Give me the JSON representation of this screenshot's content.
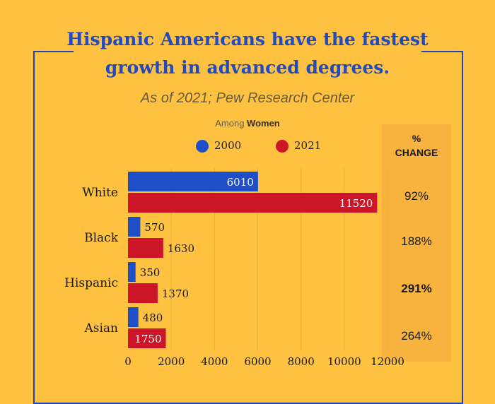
{
  "title_line1": "Hispanic Americans have the fastest",
  "title_line2": "growth in advanced degrees.",
  "subtitle": "As of 2021; Pew Research Center",
  "among_prefix": "Among ",
  "among_bold": "Women",
  "change_header_line1": "%",
  "change_header_line2": "CHANGE",
  "colors": {
    "background": "#fec240",
    "series_2000": "#1f4fc8",
    "series_2021": "#cc1527",
    "title": "#2149c0"
  },
  "percent_change": [
    {
      "category": "White",
      "value": "92%",
      "bold": false
    },
    {
      "category": "Black",
      "value": "188%",
      "bold": false
    },
    {
      "category": "Hispanic",
      "value": "291%",
      "bold": true
    },
    {
      "category": "Asian",
      "value": "264%",
      "bold": false
    }
  ],
  "chart_data": {
    "type": "bar",
    "orientation": "horizontal",
    "categories": [
      "White",
      "Black",
      "Hispanic",
      "Asian"
    ],
    "series": [
      {
        "name": "2000",
        "values": [
          6010,
          570,
          350,
          480
        ],
        "color": "#1f4fc8"
      },
      {
        "name": "2021",
        "values": [
          11520,
          1630,
          1370,
          1750
        ],
        "color": "#cc1527"
      }
    ],
    "xlim": [
      0,
      12000
    ],
    "xticks": [
      "0",
      "2000",
      "4000",
      "6000",
      "8000",
      "10000",
      "12000"
    ],
    "grid": true,
    "legend_position": "top"
  }
}
